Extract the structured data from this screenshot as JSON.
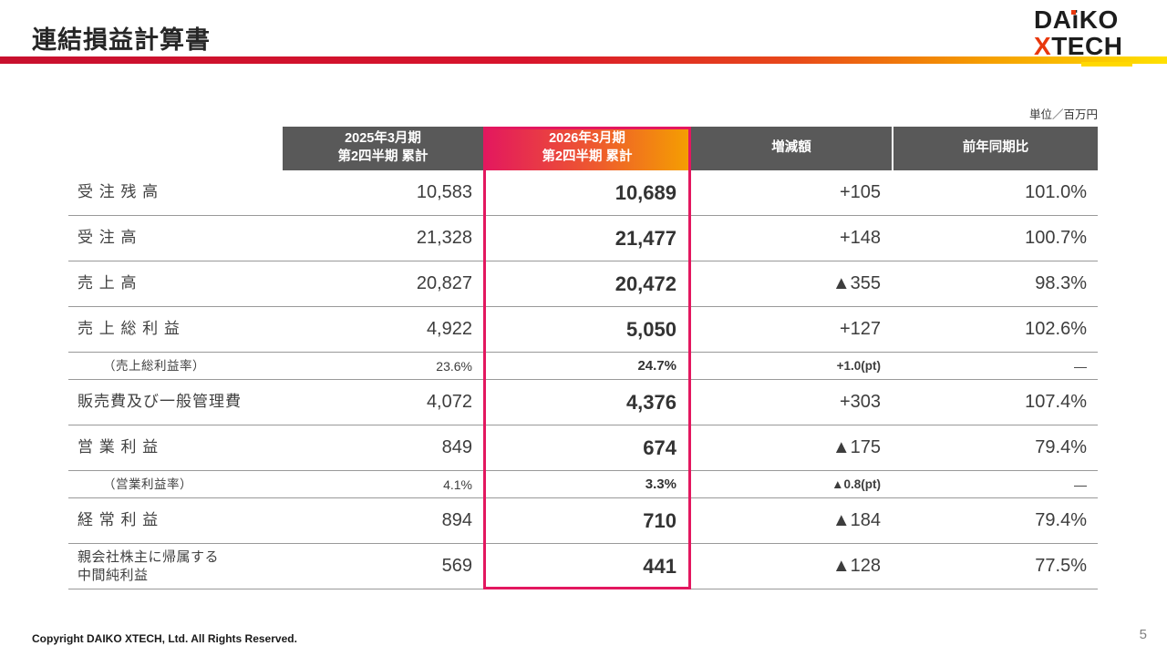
{
  "page": {
    "title": "連結損益計算書",
    "unit_note": "単位／百万円",
    "footer": "Copyright DAIKO XTECH, Ltd. All Rights Reserved.",
    "page_number": "5"
  },
  "logo": {
    "line1": "DAiKO",
    "x": "X",
    "tech": "TECH"
  },
  "colors": {
    "header_gray": "#595959",
    "highlight_pink": "#e3175f",
    "highlight_orange": "#f5a000"
  },
  "table": {
    "col_2025": "2025年3月期\n第2四半期 累計",
    "col_2026": "2026年3月期\n第2四半期 累計",
    "col_change": "増減額",
    "col_yoy": "前年同期比",
    "rows": [
      {
        "label": "受 注 残 高",
        "y2025": "10,583",
        "y2026": "10,689",
        "change": "+105",
        "yoy": "101.0%"
      },
      {
        "label": "受 注 高",
        "y2025": "21,328",
        "y2026": "21,477",
        "change": "+148",
        "yoy": "100.7%"
      },
      {
        "label": "売 上 高",
        "y2025": "20,827",
        "y2026": "20,472",
        "change": "▲355",
        "yoy": "98.3%"
      },
      {
        "label": "売 上 総 利 益",
        "y2025": "4,922",
        "y2026": "5,050",
        "change": "+127",
        "yoy": "102.6%"
      },
      {
        "label": "（売上総利益率）",
        "y2025": "23.6%",
        "y2026": "24.7%",
        "change": "+1.0(pt)",
        "yoy": "―"
      },
      {
        "label": "販売費及び一般管理費",
        "y2025": "4,072",
        "y2026": "4,376",
        "change": "+303",
        "yoy": "107.4%"
      },
      {
        "label": "営 業 利 益",
        "y2025": "849",
        "y2026": "674",
        "change": "▲175",
        "yoy": "79.4%"
      },
      {
        "label": "（営業利益率）",
        "y2025": "4.1%",
        "y2026": "3.3%",
        "change": "▲0.8(pt)",
        "yoy": "―"
      },
      {
        "label": "経 常 利 益",
        "y2025": "894",
        "y2026": "710",
        "change": "▲184",
        "yoy": "79.4%"
      },
      {
        "label": "親会社株主に帰属する\n中間純利益",
        "y2025": "569",
        "y2026": "441",
        "change": "▲128",
        "yoy": "77.5%"
      }
    ]
  }
}
